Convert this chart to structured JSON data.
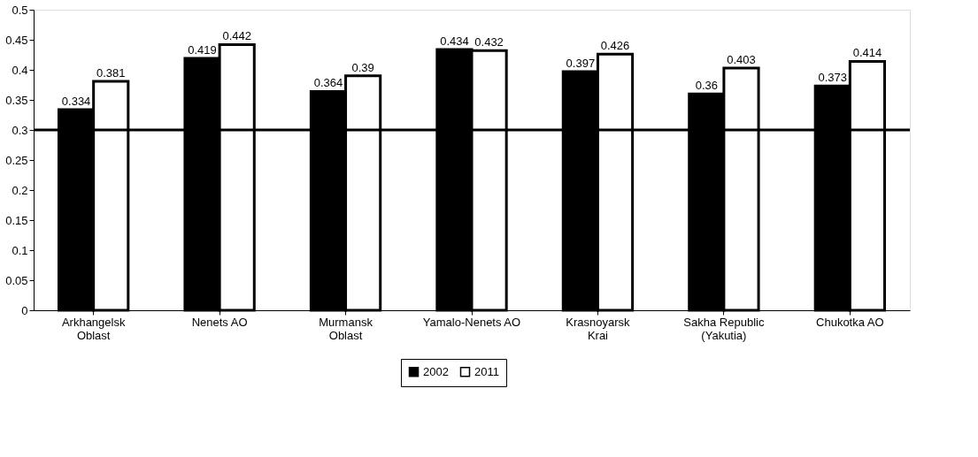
{
  "chart_data": {
    "type": "bar",
    "categories": [
      "Arkhangelsk\nOblast",
      "Nenets AO",
      "Murmansk\nOblast",
      "Yamalo-Nenets AO",
      "Krasnoyarsk\nKrai",
      "Sakha Republic\n(Yakutia)",
      "Chukotka AO"
    ],
    "series": [
      {
        "name": "2002",
        "color": "#000000",
        "values": [
          0.334,
          0.419,
          0.364,
          0.434,
          0.397,
          0.36,
          0.373
        ]
      },
      {
        "name": "2011",
        "color": "#ffffff",
        "values": [
          0.381,
          0.442,
          0.39,
          0.432,
          0.426,
          0.403,
          0.414
        ]
      }
    ],
    "ylim": [
      0,
      0.5
    ],
    "yticks": [
      0,
      0.05,
      0.1,
      0.15,
      0.2,
      0.25,
      0.3,
      0.35,
      0.4,
      0.45,
      0.5
    ],
    "ref_lines": [
      {
        "axis": "y",
        "value": 0.3,
        "color": "#000000"
      }
    ],
    "data_labels": true,
    "grid": false,
    "legend": "bottom"
  }
}
